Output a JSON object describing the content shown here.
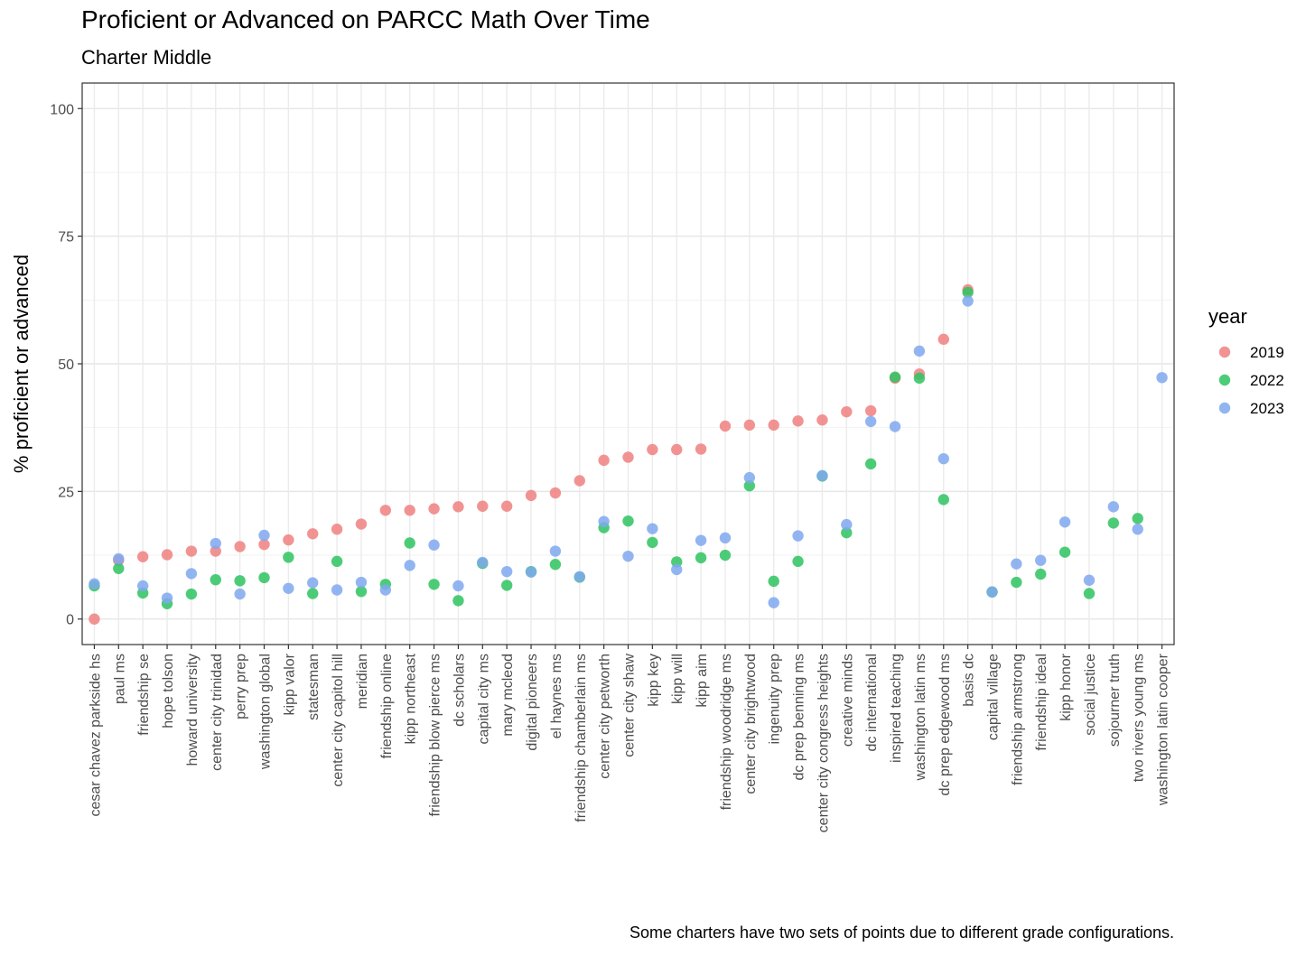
{
  "title": "Proficient or Advanced on PARCC Math Over Time",
  "subtitle": "Charter Middle",
  "caption": "Some charters have two sets of points due to different grade configurations.",
  "chart_data": {
    "type": "scatter",
    "title": "Proficient or Advanced on PARCC Math Over Time",
    "subtitle": "Charter Middle",
    "xlabel": "",
    "ylabel": "% proficient or advanced",
    "ylim": [
      -5,
      105
    ],
    "yticks": [
      0,
      25,
      50,
      75,
      100
    ],
    "grid": true,
    "legend": {
      "title": "year",
      "position": "right"
    },
    "colors": {
      "2019": "#f08080",
      "2022": "#2ec360",
      "2023": "#7fa8f0"
    },
    "categories": [
      "cesar chavez parkside hs",
      "paul ms",
      "friendship se",
      "hope tolson",
      "howard university",
      "center city trinidad",
      "perry prep",
      "washington global",
      "kipp valor",
      "statesman",
      "center city capitol hill",
      "meridian",
      "friendship online",
      "kipp northeast",
      "friendship blow pierce ms",
      "dc scholars",
      "capital city ms",
      "mary mcleod",
      "digital pioneers",
      "el haynes ms",
      "friendship chamberlain ms",
      "center city petworth",
      "center city shaw",
      "kipp key",
      "kipp will",
      "kipp aim",
      "friendship woodridge ms",
      "center city brightwood",
      "ingenuity prep",
      "dc prep benning ms",
      "center city congress heights",
      "creative minds",
      "dc international",
      "inspired teaching",
      "washington latin ms",
      "dc prep edgewood ms",
      "basis dc",
      "capital village",
      "friendship armstrong",
      "friendship ideal",
      "kipp honor",
      "social justice",
      "sojourner truth",
      "two rivers young ms",
      "washington latin cooper"
    ],
    "series": [
      {
        "name": "2019",
        "values": [
          0,
          11.5,
          12.2,
          12.6,
          13.3,
          13.3,
          14.2,
          14.6,
          15.5,
          16.7,
          17.6,
          18.6,
          21.3,
          21.3,
          21.6,
          22.0,
          22.1,
          22.1,
          24.2,
          24.7,
          27.1,
          31.1,
          31.7,
          33.2,
          33.2,
          33.3,
          37.8,
          38.0,
          38.0,
          38.8,
          39.0,
          40.6,
          40.8,
          47.2,
          48.0,
          54.8,
          64.5,
          null,
          null,
          null,
          null,
          null,
          null,
          null,
          null
        ]
      },
      {
        "name": "2022",
        "values": [
          6.5,
          9.9,
          5.1,
          3.0,
          4.9,
          7.7,
          7.5,
          8.1,
          12.1,
          5.0,
          11.3,
          5.4,
          6.8,
          14.9,
          6.8,
          3.6,
          10.9,
          6.6,
          9.3,
          10.7,
          8.2,
          17.9,
          19.2,
          15.0,
          11.2,
          12.0,
          12.5,
          26.1,
          7.4,
          11.3,
          28.0,
          16.9,
          30.4,
          47.4,
          47.2,
          23.4,
          64.0,
          5.3,
          7.2,
          8.8,
          13.1,
          5.0,
          18.8,
          19.7,
          null
        ]
      },
      {
        "name": "2023",
        "values": [
          6.9,
          11.8,
          6.5,
          4.1,
          8.9,
          14.8,
          4.9,
          16.4,
          6.0,
          7.1,
          5.7,
          7.2,
          5.7,
          10.5,
          14.5,
          6.5,
          11.1,
          9.3,
          9.2,
          13.3,
          8.3,
          19.1,
          12.3,
          17.7,
          9.7,
          15.4,
          15.9,
          27.7,
          3.2,
          16.3,
          28.1,
          18.5,
          38.7,
          37.7,
          52.5,
          31.4,
          62.3,
          5.3,
          10.8,
          11.5,
          19.0,
          7.6,
          22.0,
          17.6,
          47.3
        ]
      }
    ]
  }
}
